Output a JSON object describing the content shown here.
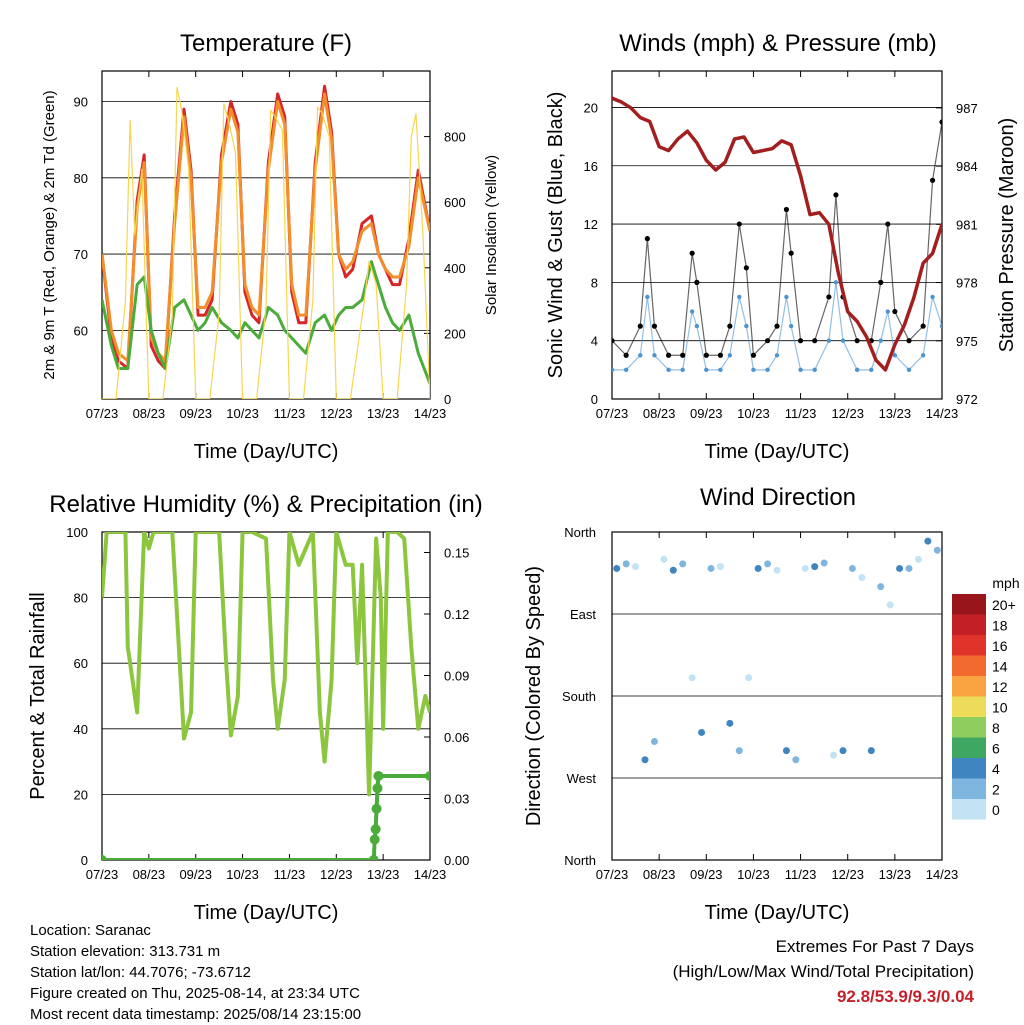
{
  "info": {
    "location": "Location: Saranac",
    "elevation": "Station elevation: 313.731 m",
    "latlon": "Station lat/lon: 44.7076; -73.6712",
    "created": "Figure created on Thu, 2025-08-14, at 23:34 UTC",
    "recent": "Most recent data timestamp: 2025/08/14 23:15:00"
  },
  "extremes": {
    "line1": "Extremes For Past 7 Days",
    "line2": "(High/Low/Max Wind/Total Precipitation)",
    "values": "92.8/53.9/9.3/0.04",
    "value_color": "#c8202a"
  },
  "chart_data": [
    {
      "type": "line",
      "title": "Temperature (F)",
      "xlabel": "Time (Day/UTC)",
      "ylabel": "2m & 9m T (Red, Orange) & 2m Td (Green)",
      "y2label": "Solar Insolation (Yellow)",
      "x_ticks": [
        "07/23",
        "08/23",
        "09/23",
        "10/23",
        "11/23",
        "12/23",
        "13/23",
        "14/23"
      ],
      "ylim": [
        51,
        94
      ],
      "yticks": [
        "60",
        "70",
        "80",
        "90"
      ],
      "y2lim": [
        0,
        1000
      ],
      "y2ticks": [
        "0",
        "200",
        "400",
        "600",
        "800"
      ],
      "series": [
        {
          "name": "2m T",
          "color": "#d62728",
          "x": [
            0,
            0.2,
            0.35,
            0.55,
            0.75,
            0.9,
            1.05,
            1.2,
            1.35,
            1.55,
            1.75,
            1.9,
            2.05,
            2.2,
            2.35,
            2.55,
            2.75,
            2.9,
            3.05,
            3.2,
            3.35,
            3.55,
            3.75,
            3.9,
            4.05,
            4.2,
            4.35,
            4.55,
            4.75,
            4.9,
            5.05,
            5.2,
            5.35,
            5.55,
            5.75,
            5.9,
            6.05,
            6.2,
            6.35,
            6.55,
            6.75,
            7.0
          ],
          "y": [
            70,
            59,
            56,
            55,
            77,
            83,
            58,
            56,
            55,
            75,
            89,
            81,
            62,
            62,
            64,
            83,
            90,
            87,
            65,
            62,
            61,
            82,
            91,
            88,
            65,
            61,
            61,
            82,
            92,
            86,
            70,
            67,
            68,
            74,
            75,
            70,
            68,
            66,
            66,
            72,
            81,
            73
          ]
        },
        {
          "name": "9m T",
          "color": "#f28e2b",
          "x": [
            0,
            0.2,
            0.35,
            0.55,
            0.75,
            0.9,
            1.05,
            1.2,
            1.35,
            1.55,
            1.75,
            1.9,
            2.05,
            2.2,
            2.35,
            2.55,
            2.75,
            2.9,
            3.05,
            3.2,
            3.35,
            3.55,
            3.75,
            3.9,
            4.05,
            4.2,
            4.35,
            4.55,
            4.75,
            4.9,
            5.05,
            5.2,
            5.35,
            5.55,
            5.75,
            5.9,
            6.05,
            6.2,
            6.35,
            6.55,
            6.75,
            7.0
          ],
          "y": [
            70,
            60,
            57,
            56,
            76,
            82,
            59,
            57,
            56,
            74,
            88,
            80,
            63,
            63,
            65,
            82,
            89,
            86,
            66,
            63,
            62,
            81,
            90,
            87,
            66,
            62,
            62,
            81,
            91,
            85,
            70,
            68,
            69,
            73,
            74,
            70,
            68,
            67,
            67,
            71,
            80,
            73
          ]
        },
        {
          "name": "2m Td",
          "color": "#4bab3b",
          "x": [
            0,
            0.2,
            0.35,
            0.55,
            0.75,
            0.9,
            1.05,
            1.2,
            1.35,
            1.55,
            1.75,
            1.9,
            2.05,
            2.2,
            2.35,
            2.55,
            2.75,
            2.9,
            3.05,
            3.2,
            3.35,
            3.55,
            3.75,
            3.9,
            4.05,
            4.2,
            4.35,
            4.55,
            4.75,
            4.9,
            5.05,
            5.2,
            5.35,
            5.55,
            5.75,
            5.9,
            6.05,
            6.2,
            6.35,
            6.55,
            6.75,
            7.0
          ],
          "y": [
            64,
            58,
            55,
            55,
            66,
            67,
            60,
            57,
            55,
            63,
            64,
            62,
            60,
            61,
            63,
            61,
            60,
            59,
            61,
            60,
            59,
            63,
            62,
            60,
            59,
            58,
            57,
            61,
            62,
            60,
            62,
            63,
            63,
            64,
            69,
            66,
            63,
            61,
            60,
            62,
            57,
            53
          ]
        },
        {
          "name": "Solar Insolation",
          "color": "#f6d650",
          "axis": "y2",
          "x": [
            0,
            0.3,
            0.5,
            0.6,
            0.7,
            0.85,
            1.0,
            1.3,
            1.5,
            1.6,
            1.7,
            1.85,
            2.0,
            2.3,
            2.5,
            2.6,
            2.7,
            2.85,
            3.0,
            3.3,
            3.5,
            3.6,
            3.7,
            3.85,
            4.0,
            4.3,
            4.5,
            4.6,
            4.7,
            4.85,
            5.0,
            5.3,
            5.5,
            5.6,
            5.7,
            5.85,
            6.0,
            6.3,
            6.5,
            6.6,
            6.7,
            6.85,
            7.0
          ],
          "y": [
            0,
            0,
            300,
            850,
            500,
            700,
            0,
            0,
            250,
            950,
            880,
            700,
            0,
            0,
            260,
            900,
            850,
            750,
            0,
            0,
            280,
            880,
            860,
            820,
            0,
            0,
            300,
            890,
            870,
            800,
            0,
            0,
            200,
            300,
            420,
            350,
            0,
            0,
            350,
            800,
            870,
            500,
            0
          ]
        }
      ]
    },
    {
      "type": "scatter",
      "title": "Winds (mph) & Pressure (mb)",
      "xlabel": "Time (Day/UTC)",
      "ylabel": "Sonic Wind & Gust (Blue, Black)",
      "y2label": "Station Pressure (Maroon)",
      "x_ticks": [
        "07/23",
        "08/23",
        "09/23",
        "10/23",
        "11/23",
        "12/23",
        "13/23",
        "14/23"
      ],
      "ylim": [
        0,
        22.5
      ],
      "yticks": [
        "0",
        "4",
        "8",
        "12",
        "16",
        "20"
      ],
      "y2lim": [
        972,
        988.9
      ],
      "y2ticks": [
        "972",
        "975",
        "978",
        "981",
        "984",
        "987"
      ],
      "series": [
        {
          "name": "Sonic Wind",
          "color": "#4d94d0",
          "x": [
            0,
            0.3,
            0.6,
            0.75,
            0.9,
            1.2,
            1.5,
            1.7,
            1.8,
            2.0,
            2.3,
            2.5,
            2.7,
            2.85,
            3.0,
            3.3,
            3.5,
            3.7,
            3.8,
            4.0,
            4.3,
            4.6,
            4.75,
            4.9,
            5.2,
            5.5,
            5.7,
            5.85,
            6.0,
            6.3,
            6.6,
            6.8,
            7.0
          ],
          "y": [
            2,
            2,
            3,
            7,
            3,
            2,
            2,
            6,
            5,
            2,
            2,
            3,
            7,
            5,
            2,
            2,
            3,
            7,
            5,
            2,
            2,
            4,
            8,
            4,
            2,
            2,
            4,
            6,
            3,
            2,
            3,
            7,
            5
          ]
        },
        {
          "name": "Gust",
          "color": "#000000",
          "x": [
            0,
            0.3,
            0.6,
            0.75,
            0.9,
            1.2,
            1.5,
            1.7,
            1.8,
            2.0,
            2.3,
            2.5,
            2.7,
            2.85,
            3.0,
            3.3,
            3.5,
            3.7,
            3.8,
            4.0,
            4.3,
            4.6,
            4.75,
            4.9,
            5.2,
            5.5,
            5.7,
            5.85,
            6.0,
            6.3,
            6.6,
            6.8,
            7.0
          ],
          "y": [
            4,
            3,
            5,
            11,
            5,
            3,
            3,
            10,
            8,
            3,
            3,
            5,
            12,
            9,
            3,
            4,
            5,
            13,
            10,
            4,
            4,
            7,
            14,
            7,
            4,
            4,
            8,
            12,
            6,
            4,
            5,
            15,
            19
          ]
        },
        {
          "name": "Station Pressure",
          "color": "#a31f1f",
          "axis": "y2",
          "x": [
            0,
            0.2,
            0.4,
            0.6,
            0.8,
            1.0,
            1.2,
            1.4,
            1.6,
            1.8,
            2.0,
            2.2,
            2.4,
            2.6,
            2.8,
            3.0,
            3.2,
            3.4,
            3.6,
            3.8,
            4.0,
            4.2,
            4.4,
            4.6,
            4.8,
            5.0,
            5.2,
            5.4,
            5.6,
            5.8,
            6.0,
            6.2,
            6.4,
            6.6,
            6.8,
            7.0
          ],
          "y": [
            987.5,
            987.3,
            987.0,
            986.5,
            986.3,
            985.0,
            984.8,
            985.4,
            985.8,
            985.2,
            984.3,
            983.8,
            984.2,
            985.4,
            985.5,
            984.7,
            984.8,
            984.9,
            985.3,
            985.1,
            983.5,
            981.5,
            981.6,
            981.0,
            978.5,
            976.5,
            976.0,
            975.2,
            974.0,
            973.5,
            974.8,
            975.8,
            977.2,
            979.0,
            979.5,
            981.0
          ]
        }
      ]
    },
    {
      "type": "line",
      "title": "Relative Humidity (%) & Precipitation (in)",
      "xlabel": "Time (Day/UTC)",
      "ylabel": "Percent & Total Rainfall",
      "x_ticks": [
        "07/23",
        "08/23",
        "09/23",
        "10/23",
        "11/23",
        "12/23",
        "13/23",
        "14/23"
      ],
      "ylim": [
        0,
        100
      ],
      "yticks": [
        "0",
        "20",
        "40",
        "60",
        "80",
        "100"
      ],
      "y2lim": [
        0,
        0.16
      ],
      "y2ticks": [
        "0.00",
        "0.03",
        "0.06",
        "0.09",
        "0.12",
        "0.15"
      ],
      "series": [
        {
          "name": "Relative Humidity",
          "color": "#8cc63f",
          "x": [
            0,
            0.1,
            0.3,
            0.5,
            0.55,
            0.75,
            0.9,
            1.0,
            1.1,
            1.3,
            1.5,
            1.6,
            1.75,
            1.9,
            2.0,
            2.2,
            2.5,
            2.65,
            2.75,
            2.9,
            3.0,
            3.2,
            3.5,
            3.65,
            3.75,
            3.9,
            4.0,
            4.2,
            4.5,
            4.65,
            4.75,
            4.9,
            5.0,
            5.2,
            5.35,
            5.45,
            5.55,
            5.7,
            5.85,
            5.95,
            6.0,
            6.1,
            6.3,
            6.45,
            6.6,
            6.75,
            6.9,
            7.0
          ],
          "y": [
            80,
            100,
            100,
            100,
            65,
            45,
            100,
            95,
            100,
            100,
            100,
            75,
            37,
            45,
            100,
            100,
            100,
            60,
            38,
            50,
            100,
            100,
            98,
            55,
            40,
            55,
            100,
            90,
            100,
            45,
            30,
            55,
            100,
            90,
            90,
            60,
            90,
            20,
            98,
            80,
            40,
            100,
            100,
            98,
            65,
            40,
            50,
            45
          ]
        },
        {
          "name": "Total Rainfall",
          "color": "#4bab3b",
          "axis": "y2",
          "x": [
            0,
            5.8,
            5.82,
            5.84,
            5.86,
            5.88,
            5.9,
            7.0
          ],
          "y": [
            0,
            0,
            0.01,
            0.015,
            0.025,
            0.035,
            0.041,
            0.041
          ]
        }
      ]
    },
    {
      "type": "scatter",
      "title": "Wind Direction",
      "xlabel": "Time (Day/UTC)",
      "ylabel": "Direction (Colored By Speed)",
      "x_ticks": [
        "07/23",
        "08/23",
        "09/23",
        "10/23",
        "11/23",
        "12/23",
        "13/23",
        "14/23"
      ],
      "yticks": [
        "North",
        "West",
        "South",
        "East",
        "North"
      ],
      "ylim": [
        0,
        360
      ],
      "colorbar": {
        "label": "mph",
        "levels": [
          "20+",
          "18",
          "16",
          "14",
          "12",
          "10",
          "8",
          "6",
          "4",
          "2",
          "0"
        ],
        "colors": [
          "#98151b",
          "#c21f26",
          "#e0342a",
          "#f26a2e",
          "#f9a341",
          "#ecdc5a",
          "#8fcd5e",
          "#3ea762",
          "#3f86c0",
          "#7fb6e0",
          "#c3e3f5"
        ]
      },
      "series": [
        {
          "name": "Wind Direction",
          "x": [
            0.1,
            0.3,
            0.5,
            0.7,
            0.9,
            1.1,
            1.3,
            1.5,
            1.7,
            1.9,
            2.1,
            2.3,
            2.5,
            2.7,
            2.9,
            3.1,
            3.3,
            3.5,
            3.7,
            3.9,
            4.1,
            4.3,
            4.5,
            4.7,
            4.9,
            5.1,
            5.3,
            5.5,
            5.7,
            5.9,
            6.1,
            6.3,
            6.5,
            6.7,
            6.9
          ],
          "y": [
            320,
            325,
            322,
            110,
            130,
            330,
            318,
            325,
            200,
            140,
            320,
            322,
            150,
            120,
            200,
            320,
            325,
            318,
            120,
            110,
            320,
            322,
            326,
            115,
            120,
            320,
            310,
            120,
            300,
            280,
            320,
            320,
            330,
            350,
            340
          ]
        }
      ]
    }
  ]
}
